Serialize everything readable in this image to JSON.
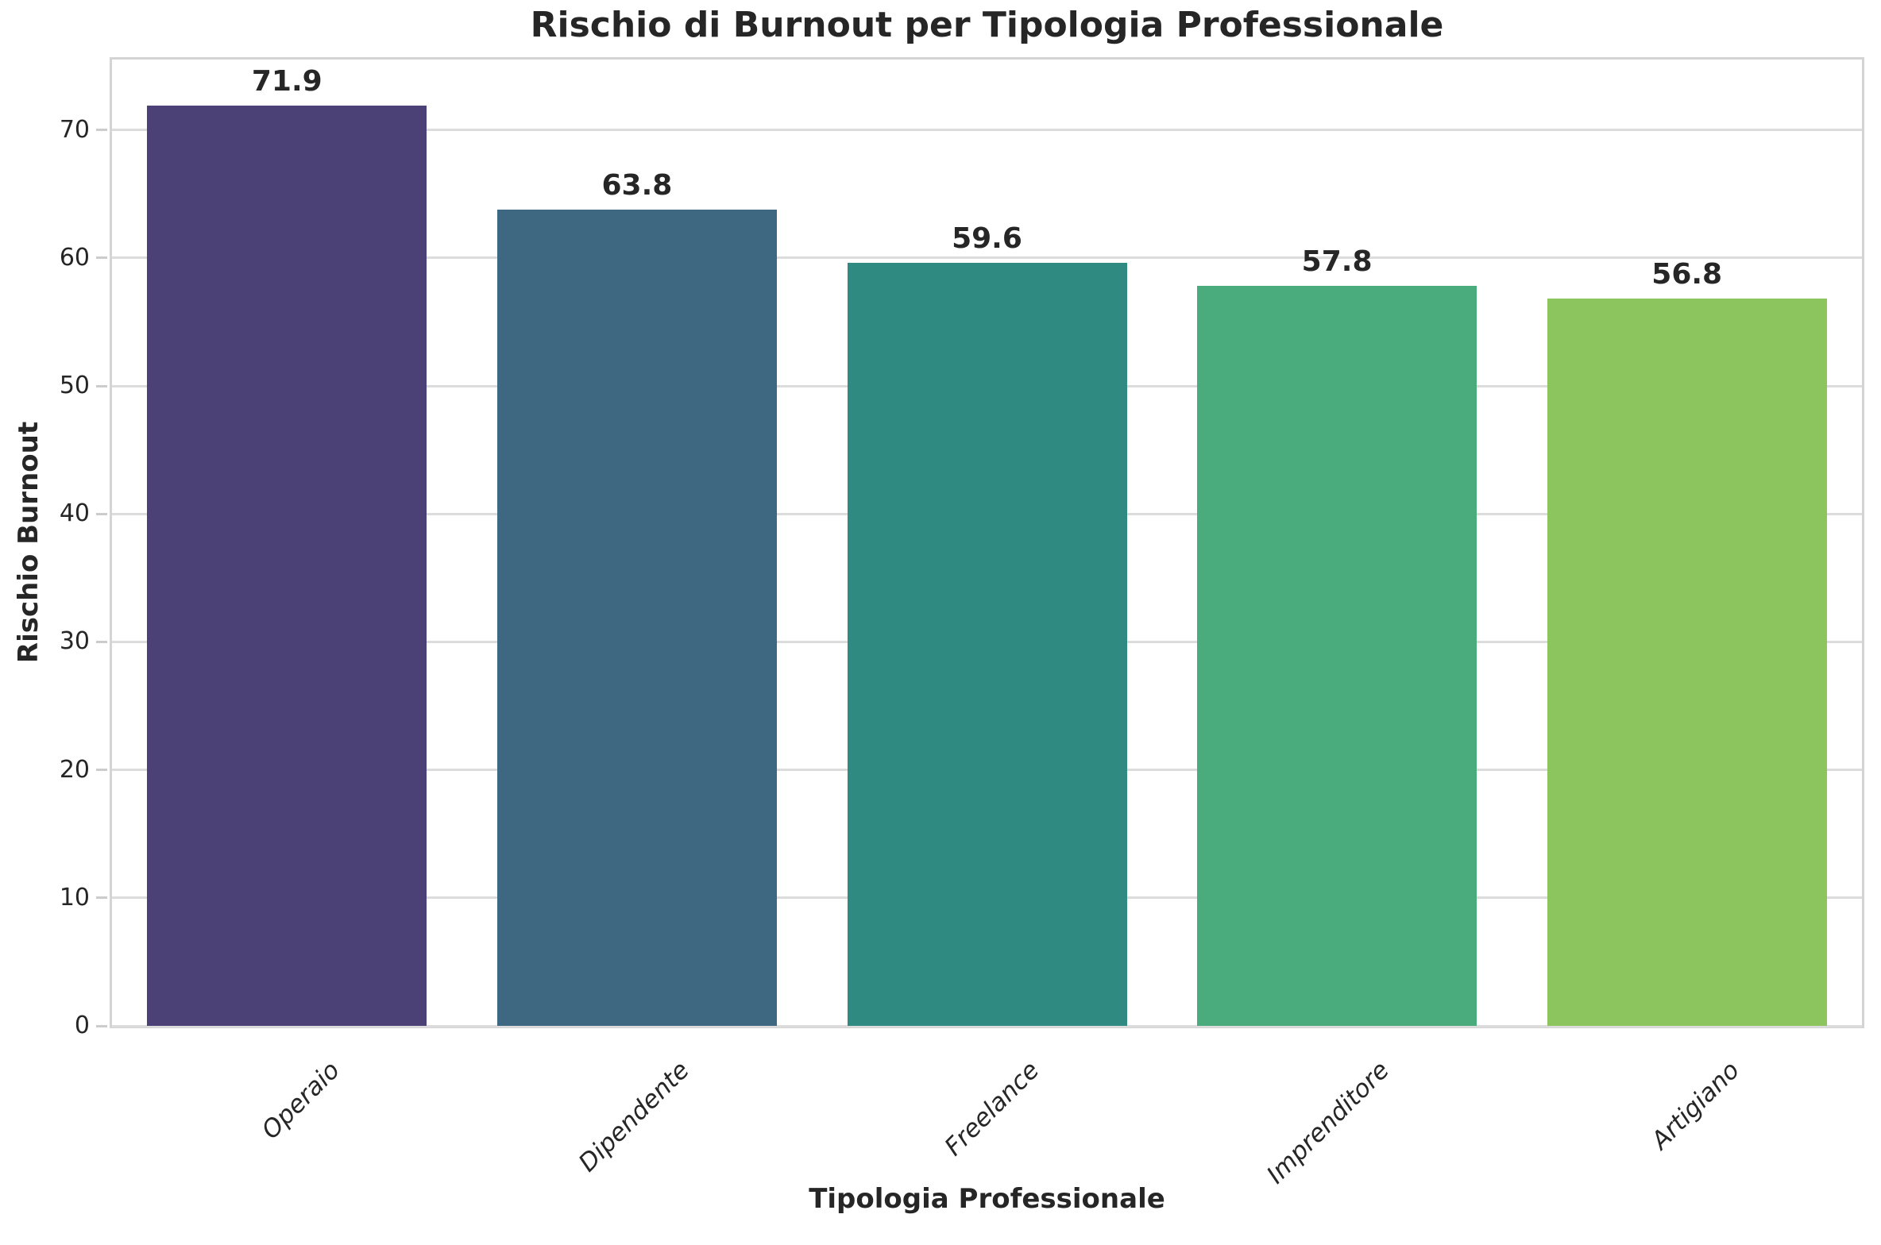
{
  "chart_data": {
    "type": "bar",
    "title": "Rischio di Burnout per Tipologia Professionale",
    "xlabel": "Tipologia Professionale",
    "ylabel": "Rischio Burnout",
    "categories": [
      "Operaio",
      "Dipendente",
      "Freelance",
      "Imprenditore",
      "Artigiano"
    ],
    "values": [
      71.9,
      63.8,
      59.6,
      57.8,
      56.8
    ],
    "value_labels": [
      "71.9",
      "63.8",
      "59.6",
      "57.8",
      "56.8"
    ],
    "bar_colors": [
      "#4b4177",
      "#3e6881",
      "#2f8a81",
      "#4aab7c",
      "#8cc45e"
    ],
    "yticks": [
      0,
      10,
      20,
      30,
      40,
      50,
      60,
      70
    ],
    "ylim": [
      0,
      75.5
    ],
    "grid": "horizontal",
    "legend": "none",
    "xtick_rotation": 45
  },
  "colors": {
    "text": "#262626",
    "gridline": "#dcdcdc",
    "spine": "#d4d4d4",
    "background": "#ffffff"
  }
}
